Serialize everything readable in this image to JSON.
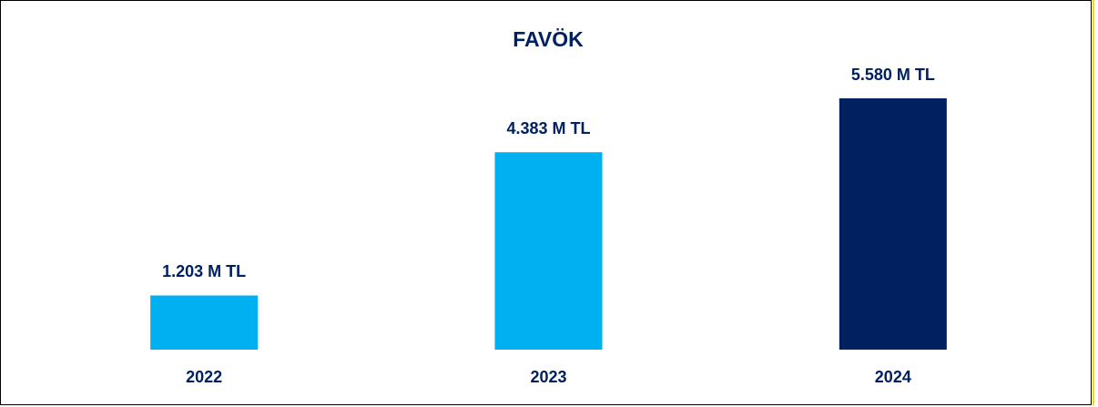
{
  "chart_data": {
    "type": "bar",
    "title": "FAVÖK",
    "categories": [
      "2022",
      "2023",
      "2024"
    ],
    "values": [
      1203,
      4383,
      5580
    ],
    "value_labels": [
      "1.203 M TL",
      "4.383 M TL",
      "5.580 M TL"
    ],
    "colors": [
      "#00b0f0",
      "#00b0f0",
      "#002060"
    ]
  }
}
